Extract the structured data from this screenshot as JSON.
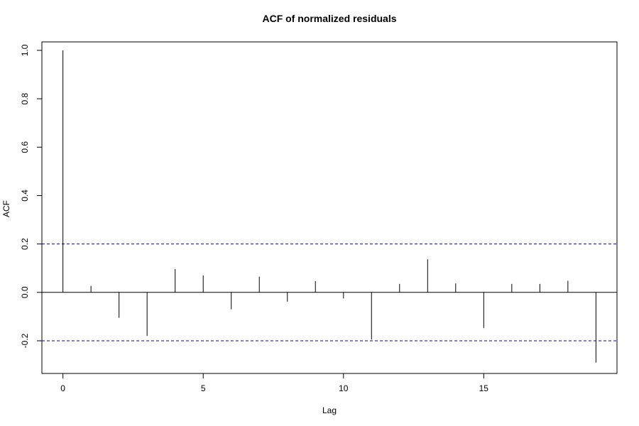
{
  "chart_data": {
    "type": "bar",
    "title": "ACF of normalized residuals",
    "xlabel": "Lag",
    "ylabel": "ACF",
    "x": [
      0,
      1,
      2,
      3,
      4,
      5,
      6,
      7,
      8,
      9,
      10,
      11,
      12,
      13,
      14,
      15,
      16,
      17,
      18,
      19
    ],
    "values": [
      1.0,
      0.027,
      -0.105,
      -0.18,
      0.096,
      0.07,
      -0.07,
      0.065,
      -0.038,
      0.047,
      -0.025,
      -0.195,
      0.035,
      0.137,
      0.037,
      -0.147,
      0.035,
      0.035,
      0.048,
      -0.29
    ],
    "xlim": [
      -0.75,
      19.75
    ],
    "ylim": [
      -0.335,
      1.035
    ],
    "x_ticks": [
      "0",
      "5",
      "10",
      "15"
    ],
    "y_ticks": [
      "-0.2",
      "0.0",
      "0.2",
      "0.4",
      "0.6",
      "0.8",
      "1.0"
    ],
    "confidence_bounds": [
      0.2,
      -0.2
    ],
    "bar_color": "#000000",
    "bound_color": "#0000CD",
    "grid": false,
    "legend": "none"
  }
}
